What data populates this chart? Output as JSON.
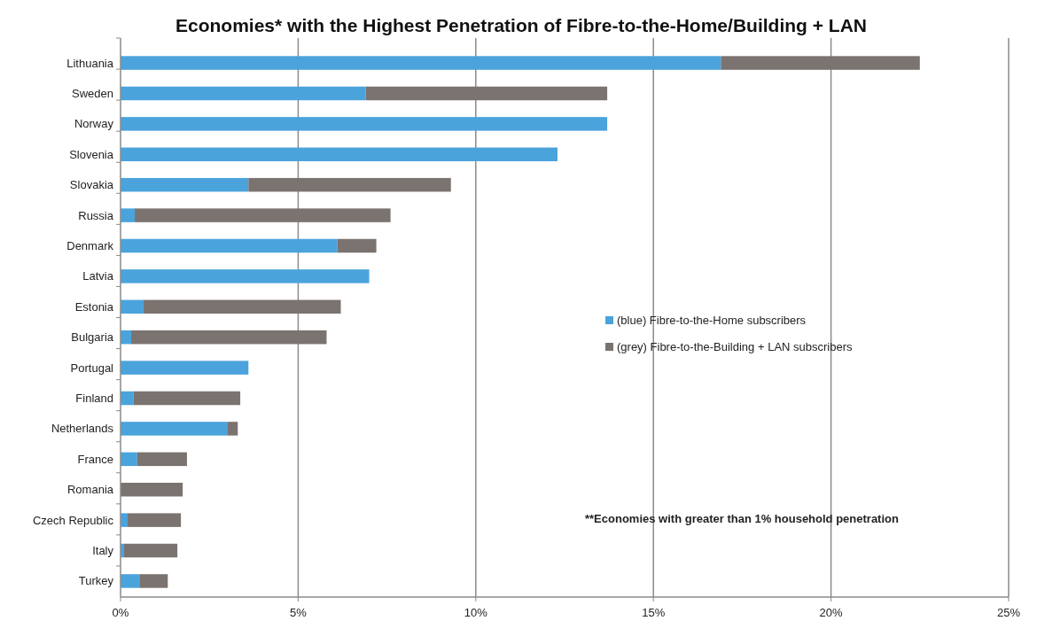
{
  "chart_data": {
    "type": "bar",
    "orientation": "horizontal",
    "stacked": true,
    "title": "Economies* with the Highest Penetration of Fibre-to-the-Home/Building + LAN",
    "categories": [
      "Lithuania",
      "Sweden",
      "Norway",
      "Slovenia",
      "Slovakia",
      "Russia",
      "Denmark",
      "Latvia",
      "Estonia",
      "Bulgaria",
      "Portugal",
      "Finland",
      "Netherlands",
      "France",
      "Romania",
      "Czech Republic",
      "Italy",
      "Turkey"
    ],
    "series": [
      {
        "name": "(blue) Fibre-to-the-Home subscribers",
        "color": "#4ba3dc",
        "values": [
          16.9,
          6.9,
          13.7,
          12.3,
          3.6,
          0.4,
          6.1,
          7.0,
          0.65,
          0.3,
          3.6,
          0.37,
          3.0,
          0.47,
          0,
          0.2,
          0.1,
          0.53
        ]
      },
      {
        "name": "(grey) Fibre-to-the-Building + LAN subscribers",
        "color": "#7a7370",
        "values": [
          5.6,
          6.8,
          0,
          0,
          5.7,
          7.2,
          1.1,
          0,
          5.55,
          5.5,
          0,
          3.0,
          0.3,
          1.4,
          1.75,
          1.5,
          1.5,
          0.8
        ]
      }
    ],
    "xlim": [
      0,
      25
    ],
    "xticks": [
      {
        "value": 0,
        "label": "0%"
      },
      {
        "value": 5,
        "label": "5%"
      },
      {
        "value": 10,
        "label": "10%"
      },
      {
        "value": 15,
        "label": "15%"
      },
      {
        "value": 20,
        "label": "20%"
      },
      {
        "value": 25,
        "label": "25%"
      }
    ],
    "grid": "x",
    "legend": "right",
    "annotations": [
      "**Economies with greater than 1% household penetration"
    ]
  }
}
